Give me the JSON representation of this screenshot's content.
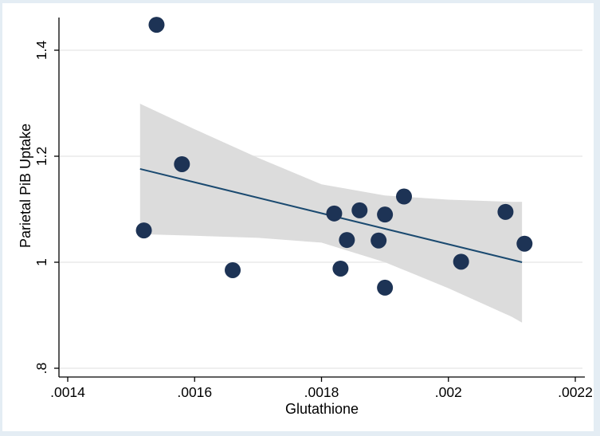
{
  "figure": {
    "frame_color": "#e4edf4",
    "background": "#ffffff"
  },
  "chart_data": {
    "type": "scatter",
    "title": "",
    "xlabel": "Glutathione",
    "ylabel": "Parietal PiB Uptake",
    "xlim": [
      0.0014,
      0.0022
    ],
    "ylim": [
      0.8,
      1.4
    ],
    "grid": true,
    "legend": "none",
    "xticks": [
      {
        "value": 0.0014,
        "label": ".0014"
      },
      {
        "value": 0.0016,
        "label": ".0016"
      },
      {
        "value": 0.0018,
        "label": ".0018"
      },
      {
        "value": 0.002,
        "label": ".002"
      },
      {
        "value": 0.0022,
        "label": ".0022"
      }
    ],
    "yticks": [
      {
        "value": 0.8,
        "label": ".8"
      },
      {
        "value": 1.0,
        "label": "1"
      },
      {
        "value": 1.2,
        "label": "1.2"
      },
      {
        "value": 1.4,
        "label": "1.4"
      }
    ],
    "points": [
      {
        "x": 0.00152,
        "y": 1.06
      },
      {
        "x": 0.00154,
        "y": 1.448
      },
      {
        "x": 0.00158,
        "y": 1.185
      },
      {
        "x": 0.00166,
        "y": 0.985
      },
      {
        "x": 0.00182,
        "y": 1.092
      },
      {
        "x": 0.00183,
        "y": 0.988
      },
      {
        "x": 0.00184,
        "y": 1.042
      },
      {
        "x": 0.00186,
        "y": 1.098
      },
      {
        "x": 0.00189,
        "y": 1.041
      },
      {
        "x": 0.0019,
        "y": 1.09
      },
      {
        "x": 0.0019,
        "y": 0.952
      },
      {
        "x": 0.00193,
        "y": 1.124
      },
      {
        "x": 0.00202,
        "y": 1.001
      },
      {
        "x": 0.00209,
        "y": 1.095
      },
      {
        "x": 0.00212,
        "y": 1.035
      }
    ],
    "fit_line": {
      "x": [
        0.001514,
        0.002116
      ],
      "y": [
        1.176,
        1.0
      ]
    },
    "ci_band": {
      "x": [
        0.001514,
        0.0016,
        0.0017,
        0.0018,
        0.0019,
        0.002,
        0.0021,
        0.002116
      ],
      "upper": [
        1.299,
        1.251,
        1.197,
        1.147,
        1.126,
        1.118,
        1.114,
        1.114
      ],
      "lower": [
        1.053,
        1.05,
        1.046,
        1.037,
        1.0,
        0.951,
        0.897,
        0.886
      ]
    },
    "colors": {
      "point": "#1d3355",
      "fit_line": "#1b4a70",
      "ci_fill": "#dcdcdc",
      "grid_line": "#eaeaea",
      "axis": "#000000",
      "plot_bg": "#ffffff"
    }
  }
}
